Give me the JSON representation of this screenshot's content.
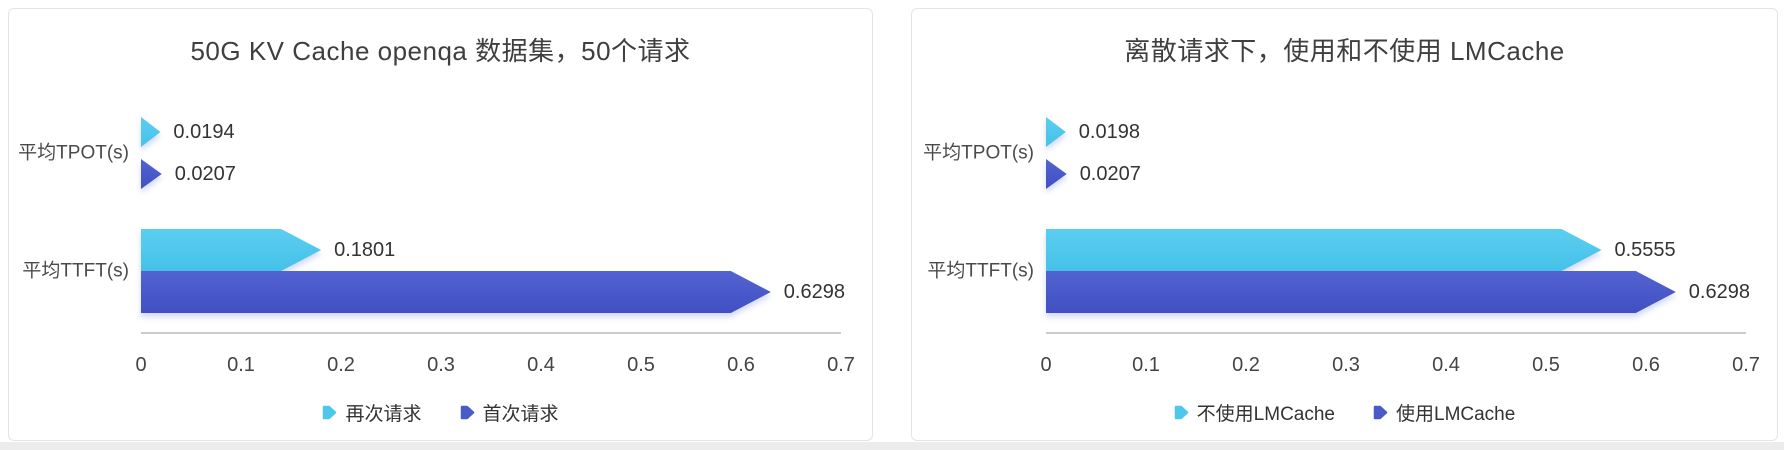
{
  "page": {
    "background": "#ffffff",
    "bottom_edge_color": "#ececec"
  },
  "chart_data": [
    {
      "type": "bar",
      "orientation": "horizontal",
      "title": "50G KV Cache openqa 数据集，50个请求",
      "categories": [
        "平均TPOT(s)",
        "平均TTFT(s)"
      ],
      "series": [
        {
          "name": "再次请求",
          "color": "#4FC7EB",
          "gradient": [
            "#5BCEF0",
            "#45C1E8"
          ],
          "values": [
            0.0194,
            0.1801
          ]
        },
        {
          "name": "首次请求",
          "color": "#4A5AC8",
          "gradient": [
            "#5263D1",
            "#414FC2"
          ],
          "values": [
            0.0207,
            0.6298
          ]
        }
      ],
      "xlim": [
        0,
        0.7
      ],
      "x_ticks": [
        "0",
        "0.1",
        "0.2",
        "0.3",
        "0.4",
        "0.5",
        "0.6",
        "0.7"
      ],
      "legend_position": "bottom",
      "grid": false,
      "value_label_color": "#333333",
      "category_label_color": "#4a4a4a",
      "tick_label_color": "#444444",
      "axis_color": "#999999"
    },
    {
      "type": "bar",
      "orientation": "horizontal",
      "title": "离散请求下，使用和不使用 LMCache",
      "categories": [
        "平均TPOT(s)",
        "平均TTFT(s)"
      ],
      "series": [
        {
          "name": "不使用LMCache",
          "color": "#4FC7EB",
          "gradient": [
            "#5BCEF0",
            "#45C1E8"
          ],
          "values": [
            0.0198,
            0.5555
          ]
        },
        {
          "name": "使用LMCache",
          "color": "#4A5AC8",
          "gradient": [
            "#5263D1",
            "#414FC2"
          ],
          "values": [
            0.0207,
            0.6298
          ]
        }
      ],
      "xlim": [
        0,
        0.7
      ],
      "x_ticks": [
        "0",
        "0.1",
        "0.2",
        "0.3",
        "0.4",
        "0.5",
        "0.6",
        "0.7"
      ],
      "legend_position": "bottom",
      "grid": false,
      "value_label_color": "#333333",
      "category_label_color": "#4a4a4a",
      "tick_label_color": "#444444",
      "axis_color": "#999999"
    }
  ]
}
